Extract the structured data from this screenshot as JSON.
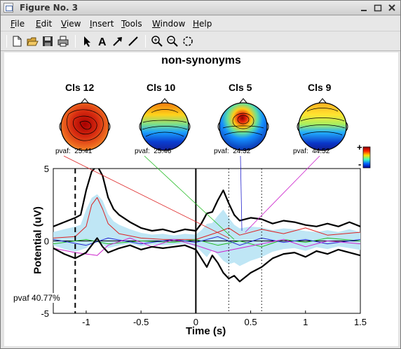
{
  "window": {
    "title": "Figure No. 3",
    "buttons": [
      "minimize",
      "maximize",
      "close"
    ]
  },
  "menu": {
    "items": [
      {
        "label": "File",
        "u": "F",
        "rest": "ile"
      },
      {
        "label": "Edit",
        "u": "E",
        "rest": "dit"
      },
      {
        "label": "View",
        "u": "V",
        "rest": "iew"
      },
      {
        "label": "Insert",
        "u": "I",
        "rest": "nsert"
      },
      {
        "label": "Tools",
        "u": "T",
        "rest": "ools"
      },
      {
        "label": "Window",
        "u": "W",
        "rest": "indow"
      },
      {
        "label": "Help",
        "u": "H",
        "rest": "elp"
      }
    ]
  },
  "toolbar": {
    "icons": [
      "new-file-icon",
      "open-folder-icon",
      "save-icon",
      "print-icon",
      "select-arrow-icon",
      "insert-text-icon",
      "insert-arrow-icon",
      "insert-line-icon",
      "zoom-in-icon",
      "zoom-out-icon",
      "rotate-icon"
    ]
  },
  "figure": {
    "title": "non-synonyms",
    "components": [
      {
        "label": "Cls 12",
        "pvaf": "pvaf:  25.41"
      },
      {
        "label": "Cls 10",
        "pvaf": "pvaf:  25.46"
      },
      {
        "label": "Cls 5",
        "pvaf": "pvaf:  24.32"
      },
      {
        "label": "Cls 9",
        "pvaf": "pvaf:  44.52"
      }
    ],
    "colorbar": {
      "plus": "+",
      "minus": "-"
    },
    "total_pvaf": "pvaf 40.77%"
  },
  "chart_data": {
    "type": "line",
    "xlabel": "Time (s)",
    "ylabel": "Potential (uV)",
    "xlim": [
      -1.3,
      1.5
    ],
    "ylim": [
      -5,
      5
    ],
    "xticks": [
      -1,
      -0.5,
      0,
      0.5,
      1,
      1.5
    ],
    "xtick_labels": [
      "-1",
      "-0.5",
      "0",
      "0.5",
      "1",
      "1.5"
    ],
    "yticks": [
      -5,
      0,
      5
    ],
    "ytick_labels": [
      "-5",
      "0",
      "5"
    ],
    "vlines": {
      "solid": [
        0
      ],
      "dashed": [
        -1.1
      ],
      "dotted": [
        0.3,
        0.6
      ]
    },
    "series": [
      {
        "color": "#000000",
        "width": 2.2,
        "x": [
          -1.3,
          -1.2,
          -1.1,
          -1.05,
          -1.0,
          -0.95,
          -0.9,
          -0.85,
          -0.8,
          -0.75,
          -0.7,
          -0.6,
          -0.5,
          -0.4,
          -0.3,
          -0.2,
          -0.1,
          0.0,
          0.05,
          0.1,
          0.15,
          0.2,
          0.25,
          0.3,
          0.35,
          0.4,
          0.45,
          0.5,
          0.6,
          0.7,
          0.8,
          0.9,
          1.0,
          1.1,
          1.2,
          1.3,
          1.4,
          1.5
        ],
        "y": [
          1.0,
          1.3,
          1.6,
          1.8,
          3.5,
          4.8,
          5.2,
          4.5,
          3.0,
          2.2,
          1.8,
          1.3,
          0.9,
          0.7,
          0.8,
          0.6,
          0.8,
          0.7,
          1.2,
          1.9,
          2.0,
          2.8,
          3.5,
          2.6,
          1.8,
          1.4,
          1.5,
          1.6,
          1.5,
          1.2,
          1.4,
          1.3,
          1.1,
          1.0,
          1.2,
          1.0,
          1.3,
          1.0
        ]
      },
      {
        "color": "#000000",
        "width": 2.2,
        "x": [
          -1.3,
          -1.2,
          -1.1,
          -1.0,
          -0.95,
          -0.9,
          -0.85,
          -0.8,
          -0.7,
          -0.6,
          -0.5,
          -0.4,
          -0.3,
          -0.2,
          -0.1,
          0.0,
          0.05,
          0.1,
          0.15,
          0.2,
          0.25,
          0.3,
          0.35,
          0.4,
          0.45,
          0.5,
          0.6,
          0.7,
          0.8,
          0.9,
          1.0,
          1.1,
          1.2,
          1.3,
          1.4,
          1.5
        ],
        "y": [
          -0.5,
          -0.9,
          -1.2,
          -0.8,
          -0.3,
          0.2,
          -0.4,
          -0.8,
          -0.5,
          -0.3,
          -0.6,
          -0.4,
          -0.5,
          -0.4,
          -0.3,
          -0.6,
          -1.2,
          -1.8,
          -1.0,
          -1.5,
          -2.2,
          -2.6,
          -2.4,
          -2.8,
          -2.5,
          -2.2,
          -1.8,
          -1.2,
          -0.9,
          -0.8,
          -1.1,
          -0.7,
          -0.9,
          -0.6,
          -0.8,
          -1.0
        ]
      },
      {
        "color": "#dd2222",
        "width": 1,
        "x": [
          -1.3,
          -1.1,
          -1.0,
          -0.95,
          -0.9,
          -0.85,
          -0.8,
          -0.7,
          -0.5,
          -0.3,
          0.0,
          0.2,
          0.3,
          0.4,
          0.6,
          0.8,
          1.0,
          1.2,
          1.5
        ],
        "y": [
          0.2,
          0.3,
          1.0,
          2.5,
          3.0,
          2.2,
          1.2,
          0.5,
          0.2,
          0.1,
          0.1,
          0.6,
          0.9,
          0.4,
          0.8,
          0.5,
          0.9,
          0.4,
          0.6
        ]
      },
      {
        "color": "#22bb22",
        "width": 1,
        "x": [
          -1.3,
          -1.0,
          -0.8,
          -0.5,
          -0.2,
          0.0,
          0.2,
          0.4,
          0.6,
          0.8,
          1.0,
          1.2,
          1.5
        ],
        "y": [
          -0.2,
          0.1,
          -0.2,
          0.0,
          -0.1,
          0.1,
          -0.3,
          0.0,
          -0.4,
          0.1,
          -0.1,
          0.2,
          0.0
        ]
      },
      {
        "color": "#2222cc",
        "width": 1,
        "x": [
          -1.3,
          -1.0,
          -0.8,
          -0.5,
          -0.2,
          0.0,
          0.2,
          0.4,
          0.6,
          0.8,
          1.0,
          1.2,
          1.5
        ],
        "y": [
          0.1,
          -0.3,
          0.2,
          -0.2,
          0.1,
          -0.1,
          0.3,
          -0.3,
          0.2,
          -0.1,
          0.1,
          -0.2,
          0.1
        ]
      },
      {
        "color": "#cc22cc",
        "width": 1,
        "x": [
          -1.3,
          -1.1,
          -0.9,
          -0.8,
          -0.6,
          -0.4,
          -0.2,
          0.0,
          0.2,
          0.4,
          0.6,
          0.8,
          1.0,
          1.2,
          1.5
        ],
        "y": [
          -0.5,
          -0.8,
          -1.0,
          -0.3,
          0.2,
          -0.4,
          0.1,
          -0.3,
          -0.8,
          -0.5,
          -0.2,
          0.1,
          -0.4,
          0.0,
          -0.2
        ]
      }
    ]
  }
}
